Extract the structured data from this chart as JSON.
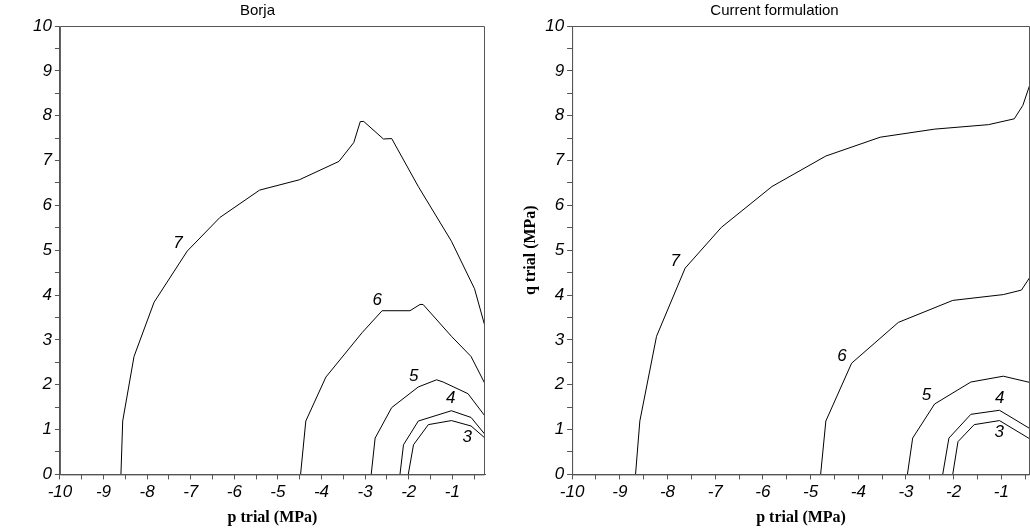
{
  "chart_data": [
    {
      "type": "line",
      "title": "Borja",
      "xlabel": "p trial (MPa)",
      "xlim": [
        -10,
        -0.25
      ],
      "ylim": [
        0,
        10
      ],
      "xticks": [
        -10,
        {
          "value": -9.5,
          "label": null
        },
        -9,
        {
          "value": -8.5,
          "label": null
        },
        -8,
        {
          "value": -7.5,
          "label": null
        },
        -7,
        {
          "value": -6.5,
          "label": null
        },
        -6,
        {
          "value": -5.5,
          "label": null
        },
        -5,
        {
          "value": -4.5,
          "label": null
        },
        -4,
        {
          "value": -3.5,
          "label": null
        },
        -3,
        {
          "value": -2.5,
          "label": null
        },
        -2,
        {
          "value": -1.5,
          "label": null
        },
        -1,
        {
          "value": -0.5,
          "label": null
        }
      ],
      "yticks": [
        0,
        {
          "value": 0.5,
          "label": null
        },
        1,
        {
          "value": 1.5,
          "label": null
        },
        2,
        {
          "value": 2.5,
          "label": null
        },
        3,
        {
          "value": 3.5,
          "label": null
        },
        4,
        {
          "value": 4.5,
          "label": null
        },
        5,
        {
          "value": 5.5,
          "label": null
        },
        6,
        {
          "value": 6.5,
          "label": null
        },
        7,
        {
          "value": 7.5,
          "label": null
        },
        8,
        {
          "value": 8.5,
          "label": null
        },
        9,
        {
          "value": 9.5,
          "label": null
        },
        10
      ],
      "grid": false,
      "legend": false,
      "marker": "none",
      "line_style": "solid",
      "series": [
        {
          "name": "7",
          "color": "#000000",
          "x": [
            -8.6,
            -8.56,
            -8.3,
            -7.84,
            -7.08,
            -6.33,
            -5.42,
            -4.51,
            -3.6,
            -3.26,
            -3.11,
            -3.03,
            -2.58,
            -2.39,
            -1.78,
            -1.02,
            -0.49,
            -0.25
          ],
          "values": [
            0,
            1.19,
            2.63,
            3.84,
            4.98,
            5.73,
            6.34,
            6.57,
            6.98,
            7.4,
            7.87,
            7.87,
            7.48,
            7.49,
            6.42,
            5.2,
            4.14,
            3.3
          ]
        },
        {
          "name": "6",
          "color": "#000000",
          "x": [
            -4.48,
            -4.36,
            -3.9,
            -3.07,
            -2.61,
            -1.97,
            -1.74,
            -1.67,
            -1.02,
            -0.57,
            -0.25
          ],
          "values": [
            0,
            1.19,
            2.17,
            3.16,
            3.65,
            3.65,
            3.79,
            3.79,
            3.08,
            2.63,
            2.02
          ]
        },
        {
          "name": "5",
          "color": "#000000",
          "x": [
            -2.86,
            -2.77,
            -2.39,
            -1.78,
            -1.36,
            -1.21,
            -0.64,
            -0.25
          ],
          "values": [
            0,
            0.81,
            1.49,
            1.95,
            2.11,
            2.06,
            1.8,
            1.3
          ]
        },
        {
          "name": "4",
          "color": "#000000",
          "x": [
            -2.2,
            -2.12,
            -1.78,
            -1.02,
            -0.57,
            -0.25
          ],
          "values": [
            0,
            0.66,
            1.19,
            1.42,
            1.27,
            0.89
          ]
        },
        {
          "name": "3",
          "color": "#000000",
          "x": [
            -2.01,
            -1.89,
            -1.55,
            -1.02,
            -0.57,
            -0.25
          ],
          "values": [
            0,
            0.66,
            1.11,
            1.2,
            1.08,
            0.81
          ]
        }
      ]
    },
    {
      "type": "line",
      "title": "Current formulation",
      "xlabel": "p trial (MPa)",
      "ylabel": "q trial (MPa)",
      "xlim": [
        -10,
        -0.4
      ],
      "ylim": [
        0,
        10
      ],
      "xticks": [
        -10,
        {
          "value": -9.5,
          "label": null
        },
        -9,
        {
          "value": -8.5,
          "label": null
        },
        -8,
        {
          "value": -7.5,
          "label": null
        },
        -7,
        {
          "value": -6.5,
          "label": null
        },
        -6,
        {
          "value": -5.5,
          "label": null
        },
        -5,
        {
          "value": -4.5,
          "label": null
        },
        -4,
        {
          "value": -3.5,
          "label": null
        },
        -3,
        {
          "value": -2.5,
          "label": null
        },
        -2,
        {
          "value": -1.5,
          "label": null
        },
        -1,
        {
          "value": -0.5,
          "label": null
        }
      ],
      "yticks": [
        0,
        {
          "value": 0.5,
          "label": null
        },
        1,
        {
          "value": 1.5,
          "label": null
        },
        2,
        {
          "value": 2.5,
          "label": null
        },
        3,
        {
          "value": 3.5,
          "label": null
        },
        4,
        {
          "value": 4.5,
          "label": null
        },
        5,
        {
          "value": 5.5,
          "label": null
        },
        6,
        {
          "value": 6.5,
          "label": null
        },
        7,
        {
          "value": 7.5,
          "label": null
        },
        8,
        {
          "value": 8.5,
          "label": null
        },
        9,
        {
          "value": 9.5,
          "label": null
        },
        10
      ],
      "grid": false,
      "legend": false,
      "marker": "none",
      "line_style": "solid",
      "series": [
        {
          "name": "7",
          "color": "#000000",
          "x": [
            -8.67,
            -8.58,
            -8.23,
            -7.63,
            -6.87,
            -5.81,
            -4.68,
            -3.54,
            -2.4,
            -1.27,
            -0.73,
            -0.55,
            -0.4
          ],
          "values": [
            0,
            1.19,
            3.08,
            4.6,
            5.51,
            6.42,
            7.1,
            7.52,
            7.7,
            7.8,
            7.93,
            8.23,
            8.7
          ]
        },
        {
          "name": "6",
          "color": "#000000",
          "x": [
            -4.79,
            -4.68,
            -4.14,
            -3.16,
            -2.02,
            -0.96,
            -0.58,
            -0.4
          ],
          "values": [
            0,
            1.19,
            2.48,
            3.39,
            3.88,
            4.01,
            4.11,
            4.4
          ]
        },
        {
          "name": "5",
          "color": "#000000",
          "x": [
            -2.97,
            -2.86,
            -2.4,
            -1.64,
            -0.96,
            -0.4
          ],
          "values": [
            0,
            0.81,
            1.57,
            2.06,
            2.19,
            2.05
          ]
        },
        {
          "name": "4",
          "color": "#000000",
          "x": [
            -2.23,
            -2.1,
            -1.64,
            -1.04,
            -0.4
          ],
          "values": [
            0,
            0.81,
            1.34,
            1.43,
            1.02
          ]
        },
        {
          "name": "3",
          "color": "#000000",
          "x": [
            -2.02,
            -1.91,
            -1.57,
            -1.04,
            -0.4
          ],
          "values": [
            0,
            0.73,
            1.11,
            1.2,
            0.79
          ]
        }
      ]
    }
  ]
}
